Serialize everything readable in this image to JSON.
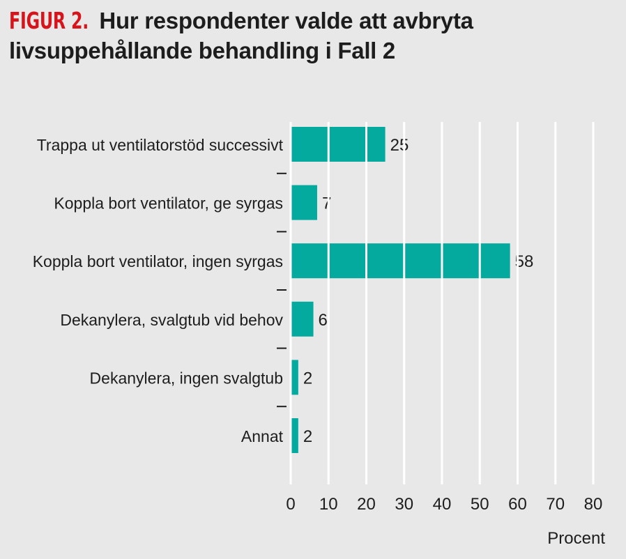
{
  "title": {
    "prefix": "FIGUR 2.",
    "line1": "Hur respondenter valde att avbryta",
    "line2": "livsuppehållande behandling i Fall 2"
  },
  "chart_data": {
    "type": "bar",
    "orientation": "horizontal",
    "categories": [
      "Trappa ut ventilatorstöd successivt",
      "Koppla bort ventilator, ge syrgas",
      "Koppla bort ventilator, ingen syrgas",
      "Dekanylera, svalgtub vid behov",
      "Dekanylera, ingen svalgtub",
      "Annat"
    ],
    "values": [
      25,
      7,
      58,
      6,
      2,
      2
    ],
    "xlabel": "Procent",
    "ylabel": "",
    "xlim": [
      0,
      80
    ],
    "xticks": [
      0,
      10,
      20,
      30,
      40,
      50,
      60,
      70,
      80
    ],
    "grid": true,
    "bar_color": "#05aa9e"
  }
}
